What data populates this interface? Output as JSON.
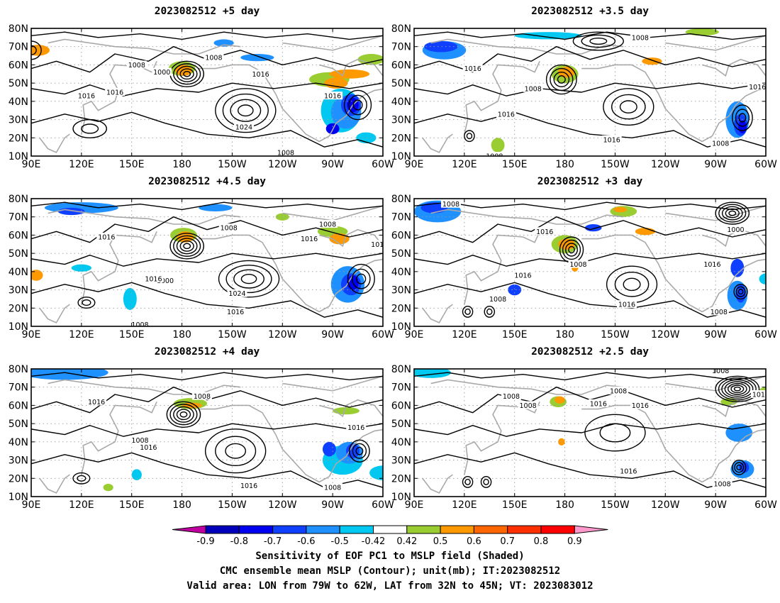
{
  "panels": [
    {
      "title": "2023082512 +5 day",
      "lead": "5"
    },
    {
      "title": "2023082512 +3.5 day",
      "lead": "3.5"
    },
    {
      "title": "2023082512 +4.5 day",
      "lead": "4.5"
    },
    {
      "title": "2023082512 +3 day",
      "lead": "3"
    },
    {
      "title": "2023082512 +4 day",
      "lead": "4"
    },
    {
      "title": "2023082512 +2.5 day",
      "lead": "2.5"
    }
  ],
  "map": {
    "lon_range": [
      90,
      300
    ],
    "lat_range": [
      10,
      80
    ],
    "lon_ticks": [
      {
        "value": 90,
        "label": "90E"
      },
      {
        "value": 120,
        "label": "120E"
      },
      {
        "value": 150,
        "label": "150E"
      },
      {
        "value": 180,
        "label": "180"
      },
      {
        "value": 210,
        "label": "150W"
      },
      {
        "value": 240,
        "label": "120W"
      },
      {
        "value": 270,
        "label": "90W"
      },
      {
        "value": 300,
        "label": "60W"
      }
    ],
    "lat_ticks": [
      {
        "value": 10,
        "label": "10N"
      },
      {
        "value": 20,
        "label": "20N"
      },
      {
        "value": 30,
        "label": "30N"
      },
      {
        "value": 40,
        "label": "40N"
      },
      {
        "value": 50,
        "label": "50N"
      },
      {
        "value": 60,
        "label": "60N"
      },
      {
        "value": 70,
        "label": "70N"
      },
      {
        "value": 80,
        "label": "80N"
      }
    ],
    "contour_color": "#000000",
    "coast_color": "#a9a9a9",
    "grid": true
  },
  "colorbar": {
    "labels": [
      "-0.9",
      "-0.8",
      "-0.7",
      "-0.6",
      "-0.5",
      "-0.42",
      "0.42",
      "0.5",
      "0.6",
      "0.7",
      "0.8",
      "0.9"
    ],
    "colors": [
      "#c000a0",
      "#0000bb",
      "#0000f0",
      "#1040ff",
      "#1e90ff",
      "#00c8f0",
      "#ffffff",
      "#9acd32",
      "#ff9900",
      "#ff6600",
      "#ff3000",
      "#ff0000",
      "#ff99cc"
    ]
  },
  "captions": {
    "line1": "Sensitivity of EOF PC1 to MSLP field (Shaded)",
    "line2": "CMC ensemble mean MSLP (Contour); unit(mb); IT:2023082512",
    "line3": "Valid area: LON from 79W to 62W, LAT from 32N to 45N; VT: 2023083012"
  }
}
